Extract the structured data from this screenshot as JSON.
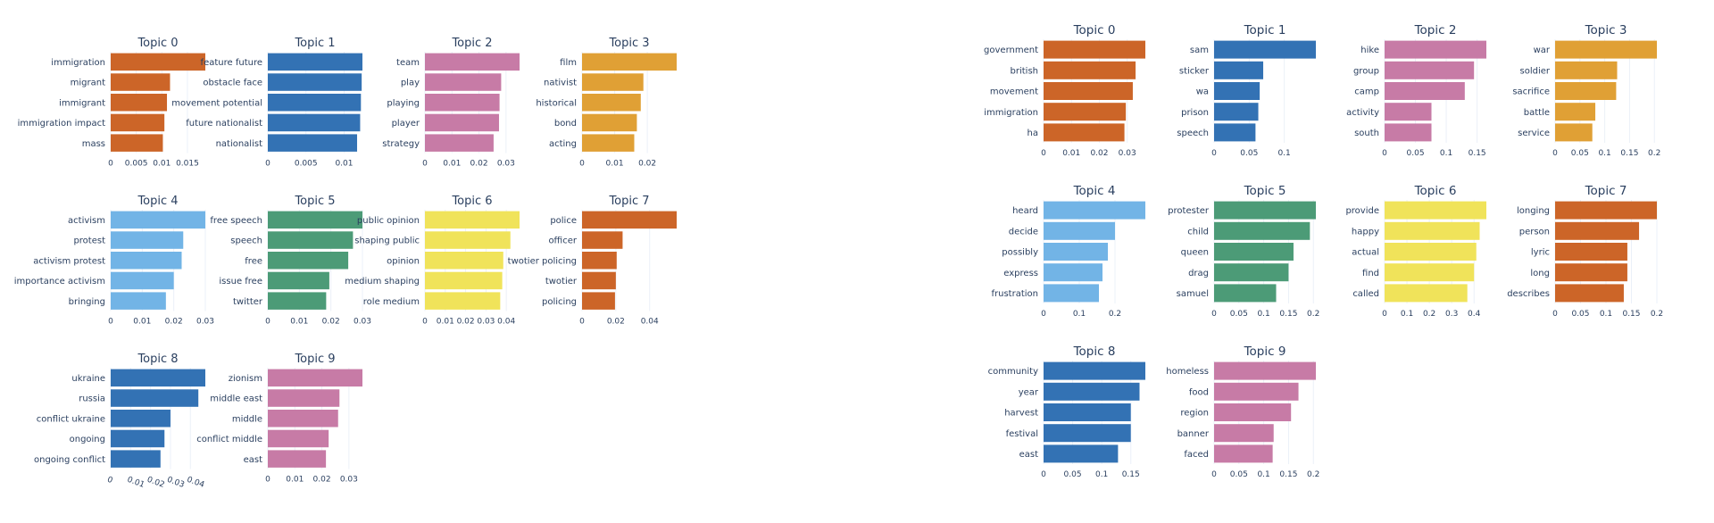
{
  "colors": {
    "orange": "#cc6528",
    "blue": "#3372b4",
    "pink": "#c77ba6",
    "gold": "#e0a035",
    "lightblue": "#72b4e6",
    "green": "#4c9b77",
    "yellow": "#f0e35a",
    "grid": "#ebf0f8",
    "text": "#2a3f5f"
  },
  "chart_data": [
    {
      "type": "bar",
      "orientation": "horizontal",
      "panel": "left",
      "grid": true,
      "subplots": [
        {
          "title": "Topic 0",
          "color": "orange",
          "words": [
            "immigration",
            "migrant",
            "immigrant",
            "immigration impact",
            "mass"
          ],
          "values": [
            0.0185,
            0.0116,
            0.011,
            0.0105,
            0.0102
          ],
          "xlim": [
            0,
            0.0185
          ],
          "ticks": [
            0,
            0.005,
            0.01,
            0.015
          ],
          "tick_labels": [
            "0",
            "0.005",
            "0.01",
            "0.015"
          ]
        },
        {
          "title": "Topic 1",
          "color": "blue",
          "words": [
            "feature future",
            "obstacle face",
            "movement potential",
            "future nationalist",
            "nationalist"
          ],
          "values": [
            0.0124,
            0.0123,
            0.0122,
            0.0121,
            0.0117
          ],
          "xlim": [
            0,
            0.0124
          ],
          "ticks": [
            0,
            0.005,
            0.01
          ],
          "tick_labels": [
            "0",
            "0.005",
            "0.01"
          ]
        },
        {
          "title": "Topic 2",
          "color": "pink",
          "words": [
            "team",
            "play",
            "playing",
            "player",
            "strategy"
          ],
          "values": [
            0.035,
            0.0282,
            0.0276,
            0.0274,
            0.0254
          ],
          "xlim": [
            0,
            0.035
          ],
          "ticks": [
            0,
            0.01,
            0.02,
            0.03
          ],
          "tick_labels": [
            "0",
            "0.01",
            "0.02",
            "0.03"
          ]
        },
        {
          "title": "Topic 3",
          "color": "gold",
          "words": [
            "film",
            "nativist",
            "historical",
            "bond",
            "acting"
          ],
          "values": [
            0.029,
            0.0188,
            0.018,
            0.0168,
            0.016
          ],
          "xlim": [
            0,
            0.029
          ],
          "ticks": [
            0,
            0.01,
            0.02
          ],
          "tick_labels": [
            "0",
            "0.01",
            "0.02"
          ]
        },
        {
          "title": "Topic 4",
          "color": "lightblue",
          "words": [
            "activism",
            "protest",
            "activism protest",
            "importance activism",
            "bringing"
          ],
          "values": [
            0.03,
            0.023,
            0.0225,
            0.02,
            0.0175
          ],
          "xlim": [
            0,
            0.03
          ],
          "ticks": [
            0,
            0.01,
            0.02,
            0.03
          ],
          "tick_labels": [
            "0",
            "0.01",
            "0.02",
            "0.03"
          ]
        },
        {
          "title": "Topic 5",
          "color": "green",
          "words": [
            "free speech",
            "speech",
            "free",
            "issue free",
            "twitter"
          ],
          "values": [
            0.03,
            0.027,
            0.0255,
            0.0195,
            0.0185
          ],
          "xlim": [
            0,
            0.03
          ],
          "ticks": [
            0,
            0.01,
            0.02,
            0.03
          ],
          "tick_labels": [
            "0",
            "0.01",
            "0.02",
            "0.03"
          ]
        },
        {
          "title": "Topic 6",
          "color": "yellow",
          "words": [
            "public opinion",
            "shaping public",
            "opinion",
            "medium shaping",
            "role medium"
          ],
          "values": [
            0.0465,
            0.042,
            0.0385,
            0.038,
            0.037
          ],
          "xlim": [
            0,
            0.0465
          ],
          "ticks": [
            0,
            0.01,
            0.02,
            0.03,
            0.04
          ],
          "tick_labels": [
            "0",
            "0.01",
            "0.02",
            "0.03",
            "0.04"
          ]
        },
        {
          "title": "Topic 7",
          "color": "orange",
          "words": [
            "police",
            "officer",
            "twotier policing",
            "twotier",
            "policing"
          ],
          "values": [
            0.056,
            0.024,
            0.0205,
            0.02,
            0.0195
          ],
          "xlim": [
            0,
            0.056
          ],
          "ticks": [
            0,
            0.02,
            0.04
          ],
          "tick_labels": [
            "0",
            "0.02",
            "0.04"
          ]
        },
        {
          "title": "Topic 8",
          "color": "blue",
          "words": [
            "ukraine",
            "russia",
            "conflict ukraine",
            "ongoing",
            "ongoing conflict"
          ],
          "values": [
            0.0475,
            0.044,
            0.03,
            0.027,
            0.025
          ],
          "xlim": [
            0,
            0.0475
          ],
          "ticks": [
            0,
            0.01,
            0.02,
            0.03,
            0.04
          ],
          "tick_labels": [
            "0",
            "0.01",
            "0.02",
            "0.03",
            "0.04"
          ],
          "rotate_ticks": true
        },
        {
          "title": "Topic 9",
          "color": "pink",
          "words": [
            "zionism",
            "middle east",
            "middle",
            "conflict middle",
            "east"
          ],
          "values": [
            0.035,
            0.0265,
            0.026,
            0.0225,
            0.0215
          ],
          "xlim": [
            0,
            0.035
          ],
          "ticks": [
            0,
            0.01,
            0.02,
            0.03
          ],
          "tick_labels": [
            "0",
            "0.01",
            "0.02",
            "0.03"
          ]
        }
      ]
    },
    {
      "type": "bar",
      "orientation": "horizontal",
      "panel": "right",
      "grid": true,
      "subplots": [
        {
          "title": "Topic 0",
          "color": "orange",
          "words": [
            "government",
            "british",
            "movement",
            "immigration",
            "ha"
          ],
          "values": [
            0.0365,
            0.033,
            0.032,
            0.0295,
            0.029
          ],
          "xlim": [
            0,
            0.0365
          ],
          "ticks": [
            0,
            0.01,
            0.02,
            0.03
          ],
          "tick_labels": [
            "0",
            "0.01",
            "0.02",
            "0.03"
          ]
        },
        {
          "title": "Topic 1",
          "color": "blue",
          "words": [
            "sam",
            "sticker",
            "wa",
            "prison",
            "speech"
          ],
          "values": [
            0.145,
            0.07,
            0.065,
            0.063,
            0.059
          ],
          "xlim": [
            0,
            0.145
          ],
          "ticks": [
            0,
            0.05,
            0.1
          ],
          "tick_labels": [
            "0",
            "0.05",
            "0.1"
          ]
        },
        {
          "title": "Topic 2",
          "color": "pink",
          "words": [
            "hike",
            "group",
            "camp",
            "activity",
            "south"
          ],
          "values": [
            0.165,
            0.145,
            0.13,
            0.076,
            0.076
          ],
          "xlim": [
            0,
            0.165
          ],
          "ticks": [
            0,
            0.05,
            0.1,
            0.15
          ],
          "tick_labels": [
            "0",
            "0.05",
            "0.1",
            "0.15"
          ]
        },
        {
          "title": "Topic 3",
          "color": "gold",
          "words": [
            "war",
            "soldier",
            "sacrifice",
            "battle",
            "service"
          ],
          "values": [
            0.205,
            0.125,
            0.123,
            0.081,
            0.075
          ],
          "xlim": [
            0,
            0.205
          ],
          "ticks": [
            0,
            0.05,
            0.1,
            0.15,
            0.2
          ],
          "tick_labels": [
            "0",
            "0.05",
            "0.1",
            "0.15",
            "0.2"
          ]
        },
        {
          "title": "Topic 4",
          "color": "lightblue",
          "words": [
            "heard",
            "decide",
            "possibly",
            "express",
            "frustration"
          ],
          "values": [
            0.285,
            0.2,
            0.18,
            0.165,
            0.155
          ],
          "xlim": [
            0,
            0.285
          ],
          "ticks": [
            0,
            0.1,
            0.2
          ],
          "tick_labels": [
            "0",
            "0.1",
            "0.2"
          ]
        },
        {
          "title": "Topic 5",
          "color": "green",
          "words": [
            "protester",
            "child",
            "queen",
            "drag",
            "samuel"
          ],
          "values": [
            0.205,
            0.193,
            0.16,
            0.15,
            0.125
          ],
          "xlim": [
            0,
            0.205
          ],
          "ticks": [
            0,
            0.05,
            0.1,
            0.15,
            0.2
          ],
          "tick_labels": [
            "0",
            "0.05",
            "0.1",
            "0.15",
            "0.2"
          ]
        },
        {
          "title": "Topic 6",
          "color": "yellow",
          "words": [
            "provide",
            "happy",
            "actual",
            "find",
            "called"
          ],
          "values": [
            0.455,
            0.425,
            0.41,
            0.4,
            0.37
          ],
          "xlim": [
            0,
            0.455
          ],
          "ticks": [
            0,
            0.1,
            0.2,
            0.3,
            0.4
          ],
          "tick_labels": [
            "0",
            "0.1",
            "0.2",
            "0.3",
            "0.4"
          ]
        },
        {
          "title": "Topic 7",
          "color": "orange",
          "words": [
            "longing",
            "person",
            "lyric",
            "long",
            "describes"
          ],
          "values": [
            0.2,
            0.165,
            0.142,
            0.142,
            0.135
          ],
          "xlim": [
            0,
            0.2
          ],
          "ticks": [
            0,
            0.05,
            0.1,
            0.15,
            0.2
          ],
          "tick_labels": [
            "0",
            "0.05",
            "0.1",
            "0.15",
            "0.2"
          ]
        },
        {
          "title": "Topic 8",
          "color": "blue",
          "words": [
            "community",
            "year",
            "harvest",
            "festival",
            "east"
          ],
          "values": [
            0.175,
            0.165,
            0.15,
            0.15,
            0.128
          ],
          "xlim": [
            0,
            0.175
          ],
          "ticks": [
            0,
            0.05,
            0.1,
            0.15
          ],
          "tick_labels": [
            "0",
            "0.05",
            "0.1",
            "0.15"
          ]
        },
        {
          "title": "Topic 9",
          "color": "pink",
          "words": [
            "homeless",
            "food",
            "region",
            "banner",
            "faced"
          ],
          "values": [
            0.205,
            0.17,
            0.155,
            0.12,
            0.118
          ],
          "xlim": [
            0,
            0.205
          ],
          "ticks": [
            0,
            0.05,
            0.1,
            0.15,
            0.2
          ],
          "tick_labels": [
            "0",
            "0.05",
            "0.1",
            "0.15",
            "0.2"
          ]
        }
      ]
    }
  ]
}
